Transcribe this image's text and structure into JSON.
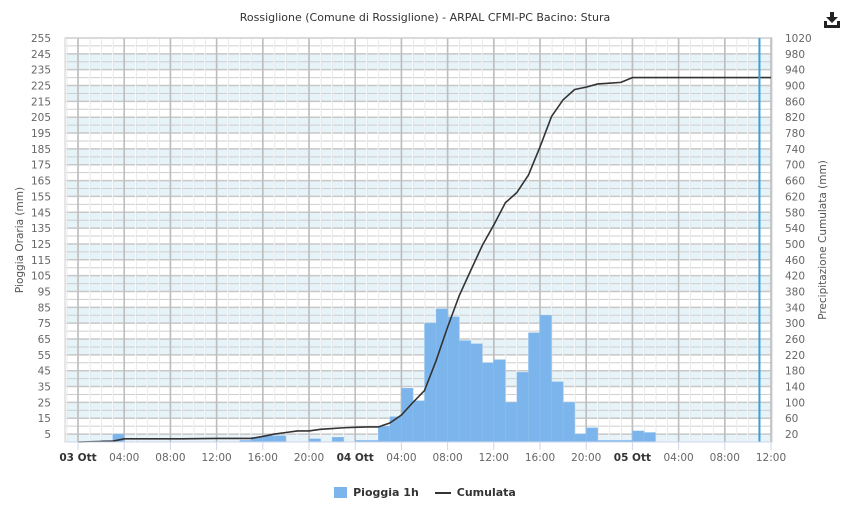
{
  "header": {
    "title": "Rossiglione (Comune di Rossiglione) - ARPAL CFMI-PC Bacino: Stura",
    "export_icon": "download-icon"
  },
  "axes": {
    "left_label": "Pioggia Oraria (mm)",
    "right_label": "Precipitazione Cumulata (mm)"
  },
  "legend": {
    "items": [
      {
        "label": "Pioggia 1h",
        "type": "bar",
        "color": "#7cb5ec"
      },
      {
        "label": "Cumulata",
        "type": "line",
        "color": "#333333"
      }
    ]
  },
  "chart_data": {
    "type": "bar+line",
    "title": "Rossiglione (Comune di Rossiglione) - ARPAL CFMI-PC Bacino: Stura",
    "xlabel": "",
    "ylabel": "Pioggia Oraria (mm)",
    "ylabel_right": "Precipitazione Cumulata (mm)",
    "ylim": [
      0,
      255
    ],
    "ylim_right": [
      0,
      1020
    ],
    "yticks_left": [
      5,
      15,
      25,
      35,
      45,
      55,
      65,
      75,
      85,
      95,
      105,
      115,
      125,
      135,
      145,
      155,
      165,
      175,
      185,
      195,
      205,
      215,
      225,
      235,
      245,
      255
    ],
    "yticks_right": [
      20,
      60,
      100,
      140,
      180,
      220,
      260,
      300,
      340,
      380,
      420,
      460,
      500,
      540,
      580,
      620,
      660,
      700,
      740,
      780,
      820,
      860,
      900,
      940,
      980,
      1020
    ],
    "x_tick_labels": [
      {
        "label": "03 Ott",
        "hour": 0,
        "bold": true
      },
      {
        "label": "04:00",
        "hour": 4
      },
      {
        "label": "08:00",
        "hour": 8
      },
      {
        "label": "12:00",
        "hour": 12
      },
      {
        "label": "16:00",
        "hour": 16
      },
      {
        "label": "20:00",
        "hour": 20
      },
      {
        "label": "04 Ott",
        "hour": 24,
        "bold": true
      },
      {
        "label": "04:00",
        "hour": 28
      },
      {
        "label": "08:00",
        "hour": 32
      },
      {
        "label": "12:00",
        "hour": 36
      },
      {
        "label": "16:00",
        "hour": 40
      },
      {
        "label": "20:00",
        "hour": 44
      },
      {
        "label": "05 Ott",
        "hour": 48,
        "bold": true
      },
      {
        "label": "04:00",
        "hour": 52
      },
      {
        "label": "08:00",
        "hour": 56
      },
      {
        "label": "12:00",
        "hour": 60
      }
    ],
    "grid": true,
    "legend_position": "bottom",
    "current_time_marker_hour": 59,
    "series": [
      {
        "name": "Pioggia 1h",
        "type": "bar",
        "color": "#7cb5ec",
        "x_hours": [
          2,
          3,
          14,
          15,
          16,
          17,
          20,
          22,
          24,
          25,
          26,
          27,
          28,
          29,
          30,
          31,
          32,
          33,
          34,
          35,
          36,
          37,
          38,
          39,
          40,
          41,
          42,
          43,
          44,
          45,
          46,
          47,
          48,
          49
        ],
        "values": [
          1,
          5,
          1,
          3,
          4,
          4,
          2,
          3,
          1,
          1,
          10,
          16,
          34,
          26,
          75,
          84,
          79,
          64,
          62,
          50,
          52,
          25,
          44,
          69,
          80,
          38,
          25,
          5,
          9,
          1,
          1,
          1,
          7,
          6
        ]
      },
      {
        "name": "Cumulata",
        "type": "line",
        "color": "#333333",
        "x_hours": [
          0,
          3,
          4,
          9,
          12,
          15,
          16,
          17,
          18,
          19,
          20,
          21,
          22,
          23,
          24,
          25,
          26,
          27,
          28,
          29,
          30,
          31,
          32,
          33,
          34,
          35,
          36,
          37,
          38,
          39,
          40,
          41,
          42,
          43,
          44,
          45,
          46,
          47,
          48,
          60
        ],
        "values": [
          0,
          2,
          8,
          8,
          9,
          9,
          14,
          20,
          24,
          28,
          28,
          32,
          34,
          36,
          37,
          38,
          38,
          48,
          68,
          100,
          130,
          205,
          290,
          369,
          433,
          496,
          548,
          604,
          630,
          674,
          745,
          822,
          864,
          890,
          896,
          904,
          906,
          908,
          920,
          920
        ]
      }
    ]
  }
}
